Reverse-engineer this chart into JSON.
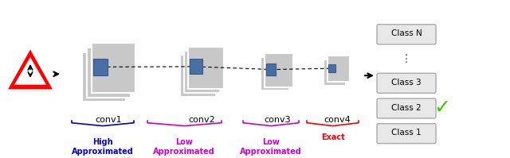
{
  "bg_color": "#f5f5f5",
  "conv_labels": [
    "conv1",
    "conv2",
    "conv3",
    "conv4"
  ],
  "conv_label_colors": [
    "#000000",
    "#000000",
    "#000000",
    "#000000"
  ],
  "approx_labels": [
    "High\nApproximated",
    "Low\nApproximated",
    "Low\nApproximated",
    "Exact"
  ],
  "approx_colors": [
    "#0000cc",
    "#cc00cc",
    "#cc00cc",
    "#ff0000"
  ],
  "class_labels": [
    "Class 1",
    "Class 2",
    "Class 3",
    "Class N"
  ],
  "check_color": "#33cc00",
  "arrow_color": "#111111",
  "layer_gray": "#c8c8c8",
  "layer_gray2": "#b8b8b8",
  "blue_rect": "#4a6fa5",
  "brace_color": "#555555"
}
